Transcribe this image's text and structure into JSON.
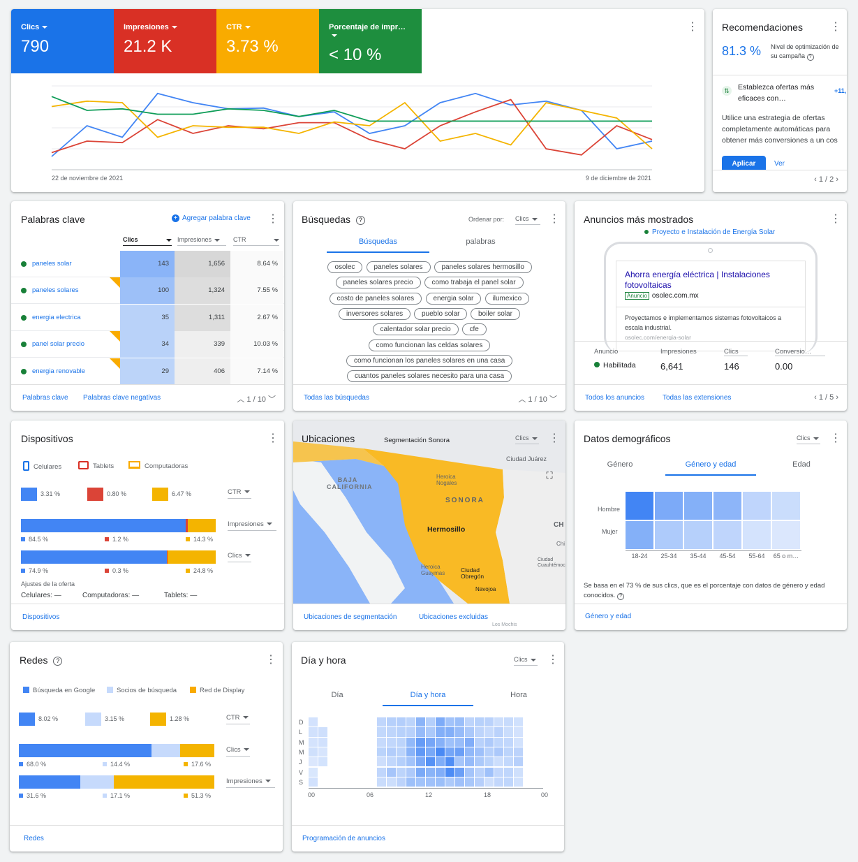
{
  "colors": {
    "blue": "#4285f4",
    "red": "#db4437",
    "yellow": "#f4b400",
    "green": "#0f9d58",
    "link": "#1a73e8"
  },
  "overview": {
    "metrics": [
      {
        "label": "Clics",
        "value": "790",
        "color": "#1a73e8"
      },
      {
        "label": "Impresiones",
        "value": "21.2 K",
        "color": "#d93025"
      },
      {
        "label": "CTR",
        "value": "3.73 %",
        "color": "#f9ab00"
      },
      {
        "label": "Porcentaje de impr…",
        "value": "< 10 %",
        "color": "#1e8e3e"
      }
    ],
    "chart_data": {
      "type": "line",
      "x_start": "22 de noviembre de 2021",
      "x_end": "9 de diciembre de 2021",
      "series": [
        {
          "color": "#4285f4",
          "values": [
            10,
            50,
            35,
            92,
            80,
            72,
            73,
            62,
            68,
            40,
            50,
            80,
            92,
            77,
            82,
            70,
            20,
            30
          ]
        },
        {
          "color": "#db4437",
          "values": [
            15,
            30,
            28,
            58,
            40,
            50,
            46,
            54,
            54,
            32,
            20,
            50,
            68,
            84,
            20,
            12,
            50,
            32
          ]
        },
        {
          "color": "#f4b400",
          "values": [
            75,
            82,
            80,
            35,
            50,
            48,
            48,
            40,
            55,
            50,
            80,
            30,
            40,
            25,
            80,
            70,
            60,
            20
          ]
        },
        {
          "color": "#0f9d58",
          "values": [
            88,
            70,
            72,
            65,
            65,
            72,
            70,
            62,
            70,
            56,
            56,
            56,
            56,
            56,
            56,
            56,
            56,
            56
          ]
        }
      ]
    }
  },
  "reco": {
    "title": "Recomendaciones",
    "score": "81.3 %",
    "score_label": "Nivel de optimización de su campaña",
    "item_title": "Establezca ofertas más eficaces con…",
    "badge": "+11,",
    "desc": "Utilice una estrategia de ofertas completamente automáticas para obtener más conversiones a un cos",
    "apply": "Aplicar",
    "view": "Ver",
    "pager": "1 / 2"
  },
  "keywords": {
    "title": "Palabras clave",
    "add": "Agregar palabra clave",
    "headers": [
      "Clics",
      "Impresiones",
      "CTR"
    ],
    "rows": [
      {
        "name": "paneles solar",
        "clicks": "143",
        "impr": "1,656",
        "ctr": "8.64 %",
        "clicks_level": 1.0,
        "impr_level": 1.0,
        "flag": false
      },
      {
        "name": "paneles solares",
        "clicks": "100",
        "impr": "1,324",
        "ctr": "7.55 %",
        "clicks_level": 0.7,
        "impr_level": 0.8,
        "flag": true
      },
      {
        "name": "energia electrica",
        "clicks": "35",
        "impr": "1,311",
        "ctr": "2.67 %",
        "clicks_level": 0.25,
        "impr_level": 0.79,
        "flag": false
      },
      {
        "name": "panel solar precio",
        "clicks": "34",
        "impr": "339",
        "ctr": "10.03 %",
        "clicks_level": 0.24,
        "impr_level": 0.2,
        "flag": true
      },
      {
        "name": "energia renovable",
        "clicks": "29",
        "impr": "406",
        "ctr": "7.14 %",
        "clicks_level": 0.2,
        "impr_level": 0.25,
        "flag": true
      }
    ],
    "foot1": "Palabras clave",
    "foot2": "Palabras clave negativas",
    "pager": "1 / 10"
  },
  "searches": {
    "title": "Búsquedas",
    "order_label": "Ordenar por:",
    "order_value": "Clics",
    "tab1": "Búsquedas",
    "tab2": "palabras",
    "chips": [
      "osolec",
      "paneles solares",
      "paneles solares hermosillo",
      "paneles solares precio",
      "como trabaja el panel solar",
      "costo de paneles solares",
      "energia solar",
      "ilumexico",
      "inversores solares",
      "pueblo solar",
      "boiler solar",
      "calentador solar precio",
      "cfe",
      "como funcionan las celdas solares",
      "como funcionan los paneles solares en una casa",
      "cuantos paneles solares necesito para una casa"
    ],
    "foot": "Todas las búsquedas",
    "pager": "1 / 10"
  },
  "ads": {
    "title": "Anuncios más mostrados",
    "campaign": "Proyecto e Instalación de Energía Solar",
    "headline": "Ahorra energía eléctrica | Instalaciones fotovoltaicas",
    "badge": "Anuncio",
    "domain": "osolec.com.mx",
    "body": "Proyectamos e implementamos sistemas fotovoltaicos a escala industrial.",
    "url": "osolec.com/energia-solar",
    "stats": [
      {
        "label": "Anuncio",
        "value": "Habilitada"
      },
      {
        "label": "Impresiones",
        "value": "6,641"
      },
      {
        "label": "Clics",
        "value": "146"
      },
      {
        "label": "Conversio…",
        "value": "0.00"
      }
    ],
    "foot1": "Todos los anuncios",
    "foot2": "Todas las extensiones",
    "pager": "1 / 5"
  },
  "devices": {
    "title": "Dispositivos",
    "legend": [
      "Celulares",
      "Tablets",
      "Computadoras"
    ],
    "ctr": {
      "label": "CTR",
      "values": [
        "3.31 %",
        "0.80 %",
        "6.47 %"
      ]
    },
    "impr": {
      "label": "Impresiones",
      "shares": [
        84.5,
        1.2,
        14.3
      ],
      "labels": [
        "84.5 %",
        "1.2 %",
        "14.3 %"
      ]
    },
    "clicks": {
      "label": "Clics",
      "shares": [
        74.9,
        0.3,
        24.8
      ],
      "labels": [
        "74.9 %",
        "0.3 %",
        "24.8 %"
      ]
    },
    "adj_title": "Ajustes de la oferta",
    "adj": [
      "Celulares: —",
      "Computadoras: —",
      "Tablets: —"
    ],
    "foot": "Dispositivos"
  },
  "locations": {
    "title": "Ubicaciones",
    "seg": "Segmentación Sonora",
    "metric": "Clics",
    "labels": {
      "baja": "BAJA CALIFORNIA",
      "sonora": "SONORA",
      "hermosillo": "Hermosillo",
      "nogales": "Heroica Nogales",
      "guaymas": "Heroica Guaymas",
      "obregon": "Ciudad Obregón",
      "navojoa": "Navojoa",
      "juarez": "Ciudad Juárez",
      "chi": "CH",
      "chi2": "Chi",
      "cuau": "Ciudad Cuauhtémoc",
      "los_mochis": "Los Mochis"
    },
    "foot1": "Ubicaciones de segmentación",
    "foot2": "Ubicaciones excluidas"
  },
  "demo": {
    "title": "Datos demográficos",
    "metric": "Clics",
    "tabs": [
      "Género",
      "Género y edad",
      "Edad"
    ],
    "rows": [
      "Hombre",
      "Mujer"
    ],
    "ages": [
      "18-24",
      "25-34",
      "35-44",
      "45-54",
      "55-64",
      "65 o m…"
    ],
    "levels": [
      [
        1.0,
        0.65,
        0.6,
        0.55,
        0.25,
        0.18
      ],
      [
        0.6,
        0.35,
        0.3,
        0.25,
        0.12,
        0.08
      ]
    ],
    "note": "Se basa en el 73 % de sus clics, que es el porcentaje con datos de género y edad conocidos.",
    "foot": "Género y edad"
  },
  "networks": {
    "title": "Redes",
    "legend": [
      "Búsqueda en Google",
      "Socios de búsqueda",
      "Red de Display"
    ],
    "ctr": {
      "label": "CTR",
      "values": [
        "8.02 %",
        "3.15 %",
        "1.28 %"
      ]
    },
    "clicks": {
      "label": "Clics",
      "shares": [
        68.0,
        14.4,
        17.6
      ],
      "labels": [
        "68.0 %",
        "14.4 %",
        "17.6 %"
      ]
    },
    "impr": {
      "label": "Impresiones",
      "shares": [
        31.6,
        17.1,
        51.3
      ],
      "labels": [
        "31.6 %",
        "17.1 %",
        "51.3 %"
      ]
    },
    "foot": "Redes"
  },
  "dayhour": {
    "title": "Día y hora",
    "metric": "Clics",
    "tabs": [
      "Día",
      "Día y hora",
      "Hora"
    ],
    "days": [
      "D",
      "L",
      "M",
      "M",
      "J",
      "V",
      "S"
    ],
    "hours": [
      "00",
      "06",
      "12",
      "18",
      "00"
    ],
    "foot": "Programación de anuncios"
  }
}
